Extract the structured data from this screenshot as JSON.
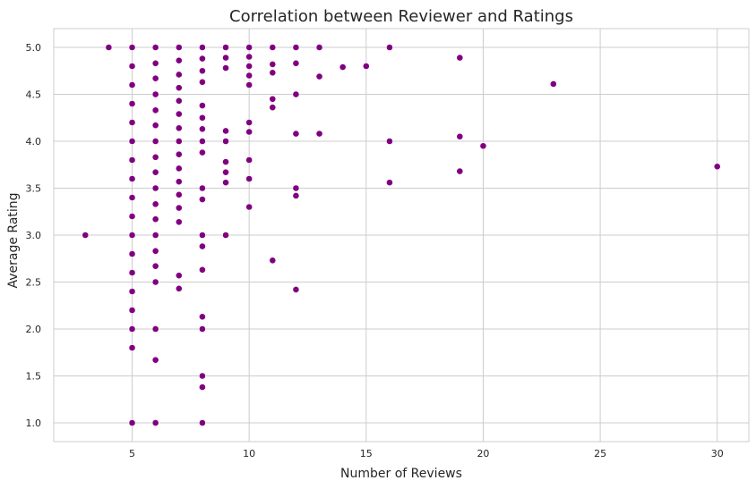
{
  "chart_data": {
    "type": "scatter",
    "title": "Correlation between Reviewer and Ratings",
    "xlabel": "Number of Reviews",
    "ylabel": "Average Rating",
    "xlim": [
      1.65,
      31.35
    ],
    "ylim": [
      0.8,
      5.2
    ],
    "xticks": [
      5,
      10,
      15,
      20,
      25,
      30
    ],
    "yticks": [
      1.0,
      1.5,
      2.0,
      2.5,
      3.0,
      3.5,
      4.0,
      4.5,
      5.0
    ],
    "xtick_labels": [
      "5",
      "10",
      "15",
      "20",
      "25",
      "30"
    ],
    "ytick_labels": [
      "1.0",
      "1.5",
      "2.0",
      "2.5",
      "3.0",
      "3.5",
      "4.0",
      "4.5",
      "5.0"
    ],
    "grid": true,
    "marker_color": "#800080",
    "points": [
      [
        3,
        3.0
      ],
      [
        4,
        5.0
      ],
      [
        5,
        5.0
      ],
      [
        5,
        4.8
      ],
      [
        5,
        4.6
      ],
      [
        5,
        4.4
      ],
      [
        5,
        4.2
      ],
      [
        5,
        4.0
      ],
      [
        5,
        3.8
      ],
      [
        5,
        3.6
      ],
      [
        5,
        3.4
      ],
      [
        5,
        3.2
      ],
      [
        5,
        3.0
      ],
      [
        5,
        2.8
      ],
      [
        5,
        2.6
      ],
      [
        5,
        2.4
      ],
      [
        5,
        2.2
      ],
      [
        5,
        2.0
      ],
      [
        5,
        1.8
      ],
      [
        5,
        1.0
      ],
      [
        6,
        5.0
      ],
      [
        6,
        4.83
      ],
      [
        6,
        4.67
      ],
      [
        6,
        4.5
      ],
      [
        6,
        4.33
      ],
      [
        6,
        4.17
      ],
      [
        6,
        4.0
      ],
      [
        6,
        3.83
      ],
      [
        6,
        3.67
      ],
      [
        6,
        3.5
      ],
      [
        6,
        3.33
      ],
      [
        6,
        3.17
      ],
      [
        6,
        3.0
      ],
      [
        6,
        2.83
      ],
      [
        6,
        2.67
      ],
      [
        6,
        2.5
      ],
      [
        6,
        2.0
      ],
      [
        6,
        1.67
      ],
      [
        6,
        1.0
      ],
      [
        7,
        5.0
      ],
      [
        7,
        4.86
      ],
      [
        7,
        4.71
      ],
      [
        7,
        4.57
      ],
      [
        7,
        4.43
      ],
      [
        7,
        4.29
      ],
      [
        7,
        4.14
      ],
      [
        7,
        4.0
      ],
      [
        7,
        3.86
      ],
      [
        7,
        3.71
      ],
      [
        7,
        3.57
      ],
      [
        7,
        3.43
      ],
      [
        7,
        3.29
      ],
      [
        7,
        3.14
      ],
      [
        7,
        2.57
      ],
      [
        7,
        2.43
      ],
      [
        8,
        5.0
      ],
      [
        8,
        4.88
      ],
      [
        8,
        4.75
      ],
      [
        8,
        4.63
      ],
      [
        8,
        4.38
      ],
      [
        8,
        4.25
      ],
      [
        8,
        4.13
      ],
      [
        8,
        4.0
      ],
      [
        8,
        3.88
      ],
      [
        8,
        3.5
      ],
      [
        8,
        3.38
      ],
      [
        8,
        3.0
      ],
      [
        8,
        2.88
      ],
      [
        8,
        2.63
      ],
      [
        8,
        2.13
      ],
      [
        8,
        2.0
      ],
      [
        8,
        1.5
      ],
      [
        8,
        1.38
      ],
      [
        8,
        1.0
      ],
      [
        9,
        5.0
      ],
      [
        9,
        4.89
      ],
      [
        9,
        4.78
      ],
      [
        9,
        4.11
      ],
      [
        9,
        4.0
      ],
      [
        9,
        3.78
      ],
      [
        9,
        3.67
      ],
      [
        9,
        3.56
      ],
      [
        9,
        3.0
      ],
      [
        10,
        5.0
      ],
      [
        10,
        4.9
      ],
      [
        10,
        4.8
      ],
      [
        10,
        4.7
      ],
      [
        10,
        4.6
      ],
      [
        10,
        4.2
      ],
      [
        10,
        4.1
      ],
      [
        10,
        3.8
      ],
      [
        10,
        3.6
      ],
      [
        10,
        3.3
      ],
      [
        11,
        5.0
      ],
      [
        11,
        4.82
      ],
      [
        11,
        4.73
      ],
      [
        11,
        4.45
      ],
      [
        11,
        4.36
      ],
      [
        11,
        2.73
      ],
      [
        12,
        5.0
      ],
      [
        12,
        4.83
      ],
      [
        12,
        4.5
      ],
      [
        12,
        4.08
      ],
      [
        12,
        3.5
      ],
      [
        12,
        3.42
      ],
      [
        12,
        2.42
      ],
      [
        13,
        5.0
      ],
      [
        13,
        4.69
      ],
      [
        13,
        4.08
      ],
      [
        14,
        4.79
      ],
      [
        15,
        4.8
      ],
      [
        16,
        5.0
      ],
      [
        16,
        4.0
      ],
      [
        16,
        3.56
      ],
      [
        19,
        4.89
      ],
      [
        19,
        4.05
      ],
      [
        19,
        3.68
      ],
      [
        20,
        3.95
      ],
      [
        23,
        4.61
      ],
      [
        30,
        3.73
      ]
    ]
  }
}
